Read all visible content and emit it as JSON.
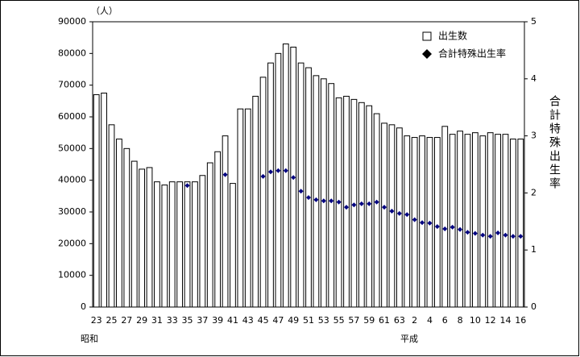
{
  "chart_data": {
    "type": "bar",
    "y_unit_label": "（人）",
    "y2_label": "合計特殊出生率",
    "era_labels": [
      "昭和",
      "平成"
    ],
    "categories": [
      "23",
      null,
      "25",
      null,
      "27",
      null,
      "29",
      null,
      "31",
      null,
      "33",
      null,
      "35",
      null,
      "37",
      null,
      "39",
      null,
      "41",
      null,
      "43",
      null,
      "45",
      null,
      "47",
      null,
      "49",
      null,
      "51",
      null,
      "53",
      null,
      "55",
      null,
      "57",
      null,
      "59",
      null,
      "61",
      null,
      "63",
      null,
      "2",
      null,
      "4",
      null,
      "6",
      null,
      "8",
      null,
      "10",
      null,
      "12",
      null,
      "14",
      null,
      "16"
    ],
    "series": [
      {
        "name": "出生数",
        "type": "bar",
        "color": "#ffffff",
        "stroke": "#000000",
        "values": [
          67000,
          67500,
          57500,
          53000,
          50000,
          46000,
          43500,
          44000,
          39500,
          38500,
          39500,
          39500,
          39500,
          39500,
          41500,
          45500,
          49000,
          54000,
          39000,
          62500,
          62500,
          66500,
          72500,
          77000,
          80000,
          83000,
          82000,
          77000,
          75500,
          73000,
          72000,
          70500,
          66000,
          66500,
          65500,
          64500,
          63500,
          61000,
          58000,
          57500,
          56500,
          54000,
          53500,
          54000,
          53500,
          53500,
          57000,
          54500,
          55500,
          54500,
          55000,
          54000,
          55000,
          54500,
          54500,
          53000,
          53000
        ]
      },
      {
        "name": "合計特殊出生率",
        "type": "scatter",
        "axis": "y2",
        "color": "#000080",
        "values": [
          null,
          null,
          null,
          null,
          null,
          null,
          null,
          null,
          null,
          null,
          null,
          null,
          2.13,
          null,
          null,
          null,
          null,
          2.32,
          null,
          null,
          null,
          null,
          2.29,
          2.37,
          2.39,
          2.39,
          2.27,
          2.03,
          1.92,
          1.88,
          1.86,
          1.86,
          1.84,
          1.75,
          1.79,
          1.81,
          1.81,
          1.84,
          1.75,
          1.68,
          1.64,
          1.62,
          1.53,
          1.48,
          1.47,
          1.41,
          1.37,
          1.4,
          1.36,
          1.31,
          1.29,
          1.26,
          1.24,
          1.3,
          1.26,
          1.24,
          1.24
        ]
      }
    ],
    "ylim": [
      0,
      90000
    ],
    "yticks": [
      0,
      10000,
      20000,
      30000,
      40000,
      50000,
      60000,
      70000,
      80000,
      90000
    ],
    "y2lim": [
      0,
      5
    ],
    "y2ticks": [
      0,
      1,
      2,
      3,
      4,
      5
    ],
    "legend": "upper right"
  }
}
